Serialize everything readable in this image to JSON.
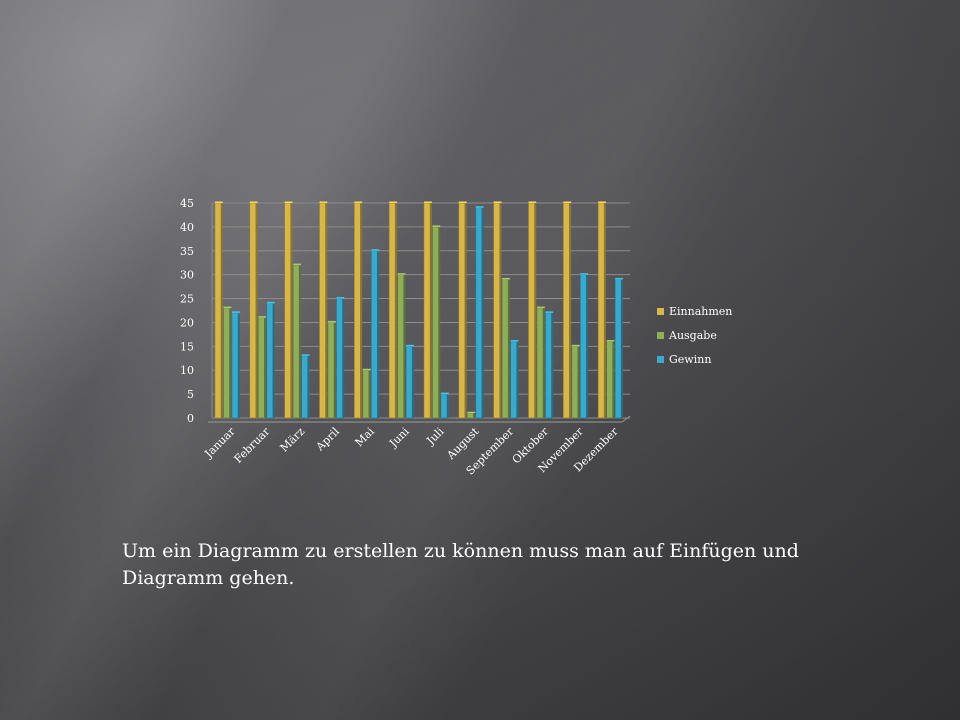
{
  "chart_data": {
    "type": "bar",
    "title": "",
    "xlabel": "",
    "ylabel": "",
    "ylim": [
      0,
      45
    ],
    "yticks": [
      0,
      5,
      10,
      15,
      20,
      25,
      30,
      35,
      40,
      45
    ],
    "grid": true,
    "legend_position": "right",
    "categories": [
      "Januar",
      "Februar",
      "März",
      "April",
      "Mai",
      "Juni",
      "Juli",
      "August",
      "September",
      "Oktober",
      "November",
      "Dezember"
    ],
    "series": [
      {
        "name": "Einnahmen",
        "color": "#d7b64a",
        "values": [
          45,
          45,
          45,
          45,
          45,
          45,
          45,
          45,
          45,
          45,
          45,
          45
        ]
      },
      {
        "name": "Ausgabe",
        "color": "#8fae5a",
        "values": [
          23,
          21,
          32,
          20,
          10,
          30,
          40,
          1,
          29,
          23,
          15,
          16
        ]
      },
      {
        "name": "Gewinn",
        "color": "#3aa9cc",
        "values": [
          22,
          24,
          13,
          25,
          35,
          15,
          5,
          44,
          16,
          22,
          30,
          29
        ]
      }
    ]
  },
  "caption": "Um ein Diagramm zu erstellen zu können muss man auf Einfügen und Diagramm gehen."
}
